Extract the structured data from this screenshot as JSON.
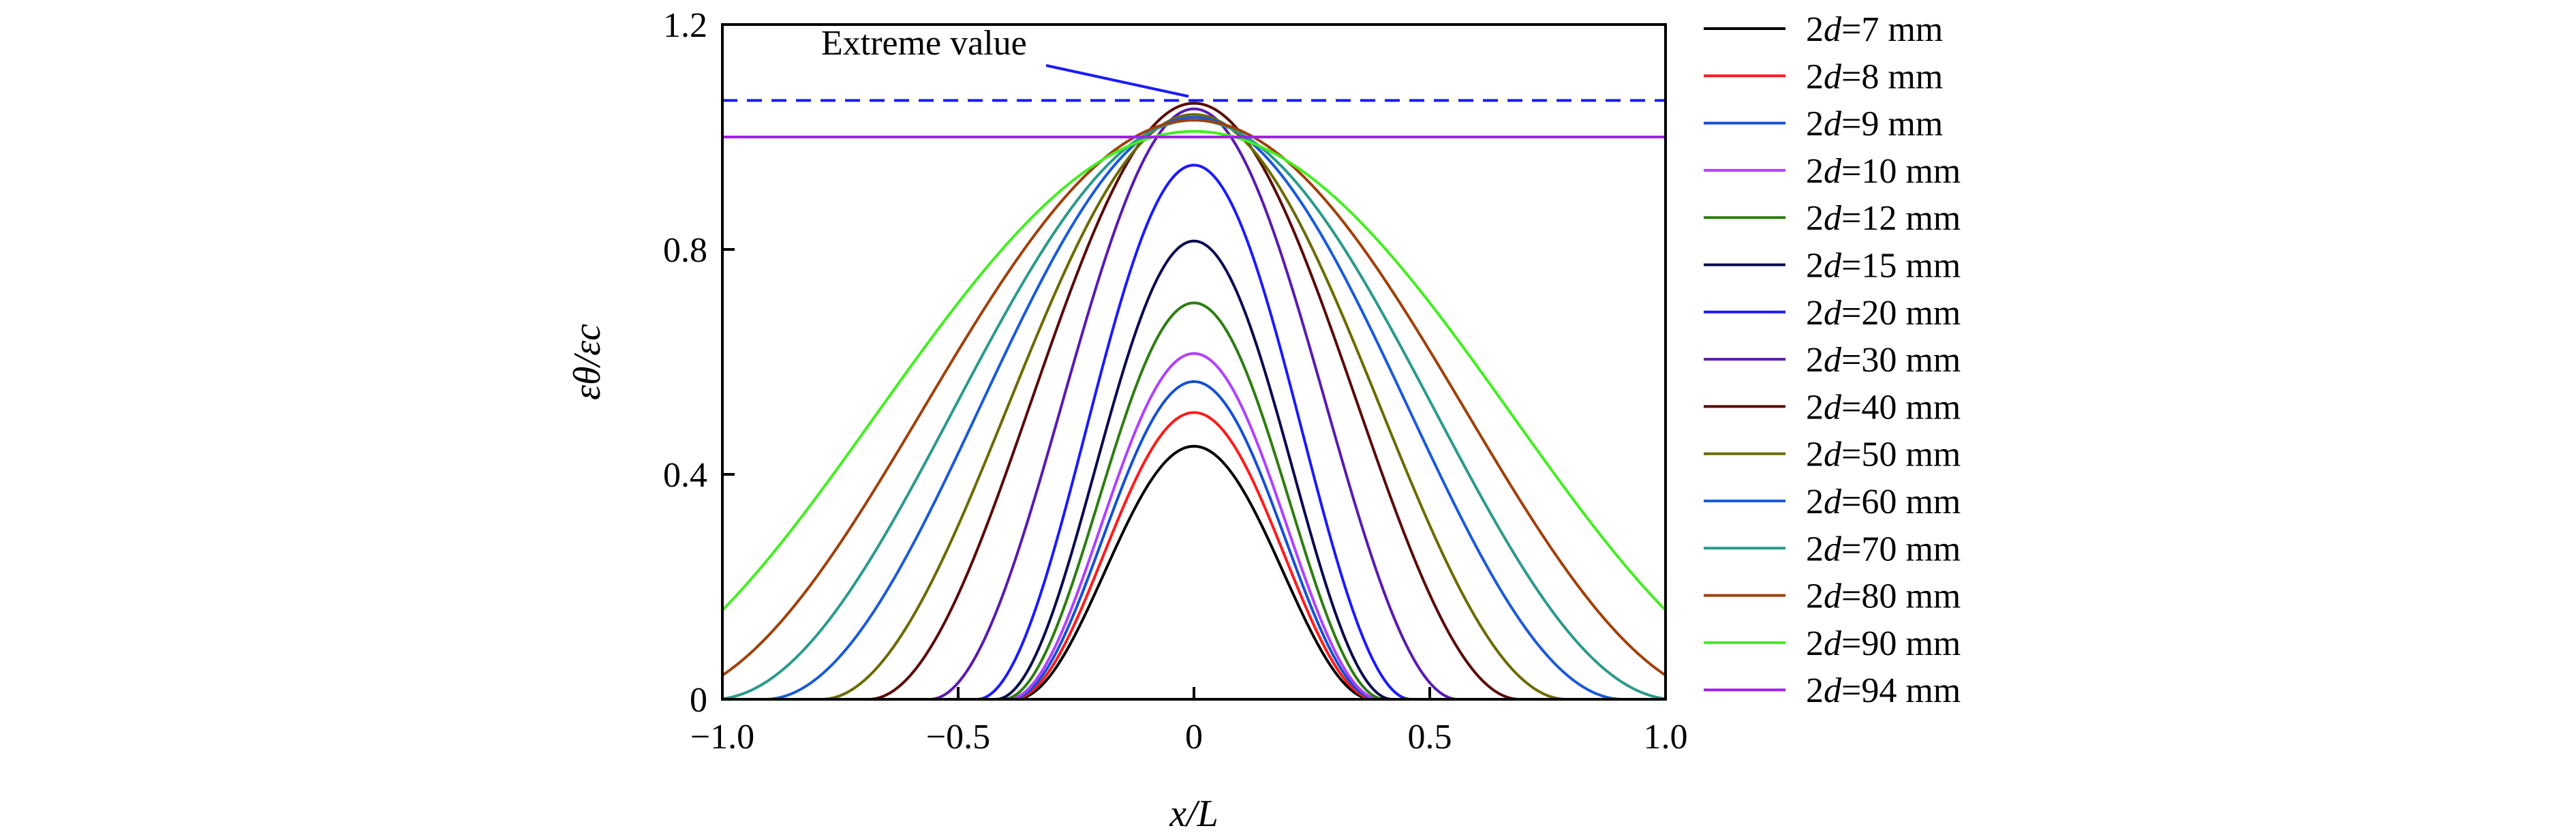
{
  "chart_data": {
    "type": "line",
    "xlabel": "x/L",
    "ylabel": "εθ/εc",
    "xlim": [
      -1.0,
      1.0
    ],
    "ylim": [
      0,
      1.2
    ],
    "xticks": [
      -1.0,
      -0.5,
      0,
      0.5,
      1.0
    ],
    "xtick_labels": [
      "−1.0",
      "−0.5",
      "0",
      "0.5",
      "1.0"
    ],
    "yticks": [
      0,
      0.4,
      0.8,
      1.2
    ],
    "ytick_labels": [
      "0",
      "0.4",
      "0.8",
      "1.2"
    ],
    "grid": false,
    "legend_position": "right outside",
    "annotation": {
      "text": "Extreme value",
      "color": "#1a1aff",
      "extreme_value": 1.065,
      "points_to": [
        0,
        1.065
      ]
    },
    "reference_line": {
      "y": 1.0,
      "color": "#a020f0"
    },
    "series": [
      {
        "name": "2d=7 mm",
        "prefix": "2",
        "var": "d",
        "suffix": "=7 mm",
        "color": "#000000",
        "peak": 0.45,
        "half_width": 0.38
      },
      {
        "name": "2d=8 mm",
        "prefix": "2",
        "var": "d",
        "suffix": "=8 mm",
        "color": "#ff1a1a",
        "peak": 0.51,
        "half_width": 0.385
      },
      {
        "name": "2d=9 mm",
        "prefix": "2",
        "var": "d",
        "suffix": "=9 mm",
        "color": "#1450d2",
        "peak": 0.565,
        "half_width": 0.39
      },
      {
        "name": "2d=10 mm",
        "prefix": "2",
        "var": "d",
        "suffix": "=10 mm",
        "color": "#b040ff",
        "peak": 0.615,
        "half_width": 0.395
      },
      {
        "name": "2d=12 mm",
        "prefix": "2",
        "var": "d",
        "suffix": "=12 mm",
        "color": "#2e7d12",
        "peak": 0.705,
        "half_width": 0.405
      },
      {
        "name": "2d=15 mm",
        "prefix": "2",
        "var": "d",
        "suffix": "=15 mm",
        "color": "#0a0a50",
        "peak": 0.815,
        "half_width": 0.42
      },
      {
        "name": "2d=20 mm",
        "prefix": "2",
        "var": "d",
        "suffix": "=20 mm",
        "color": "#1a1aff",
        "peak": 0.95,
        "half_width": 0.46
      },
      {
        "name": "2d=30 mm",
        "prefix": "2",
        "var": "d",
        "suffix": "=30 mm",
        "color": "#5a1ab0",
        "peak": 1.05,
        "half_width": 0.56
      },
      {
        "name": "2d=40 mm",
        "prefix": "2",
        "var": "d",
        "suffix": "=40 mm",
        "color": "#5a0a0a",
        "peak": 1.06,
        "half_width": 0.69
      },
      {
        "name": "2d=50 mm",
        "prefix": "2",
        "var": "d",
        "suffix": "=50 mm",
        "color": "#6b6b00",
        "peak": 1.04,
        "half_width": 0.79
      },
      {
        "name": "2d=60 mm",
        "prefix": "2",
        "var": "d",
        "suffix": "=60 mm",
        "color": "#1a5ad8",
        "peak": 1.035,
        "half_width": 0.91
      },
      {
        "name": "2d=70 mm",
        "prefix": "2",
        "var": "d",
        "suffix": "=70 mm",
        "color": "#2a9a8a",
        "peak": 1.03,
        "half_width": 1.02
      },
      {
        "name": "2d=80 mm",
        "prefix": "2",
        "var": "d",
        "suffix": "=80 mm",
        "color": "#a0400a",
        "peak": 1.03,
        "half_width": 1.15
      },
      {
        "name": "2d=90 mm",
        "prefix": "2",
        "var": "d",
        "suffix": "=90 mm",
        "color": "#44ee22",
        "peak": 1.01,
        "half_width": 1.35
      },
      {
        "name": "2d=94 mm",
        "prefix": "2",
        "var": "d",
        "suffix": "=94 mm",
        "color": "#a020f0",
        "peak": 1.0,
        "half_width": 0
      }
    ]
  }
}
